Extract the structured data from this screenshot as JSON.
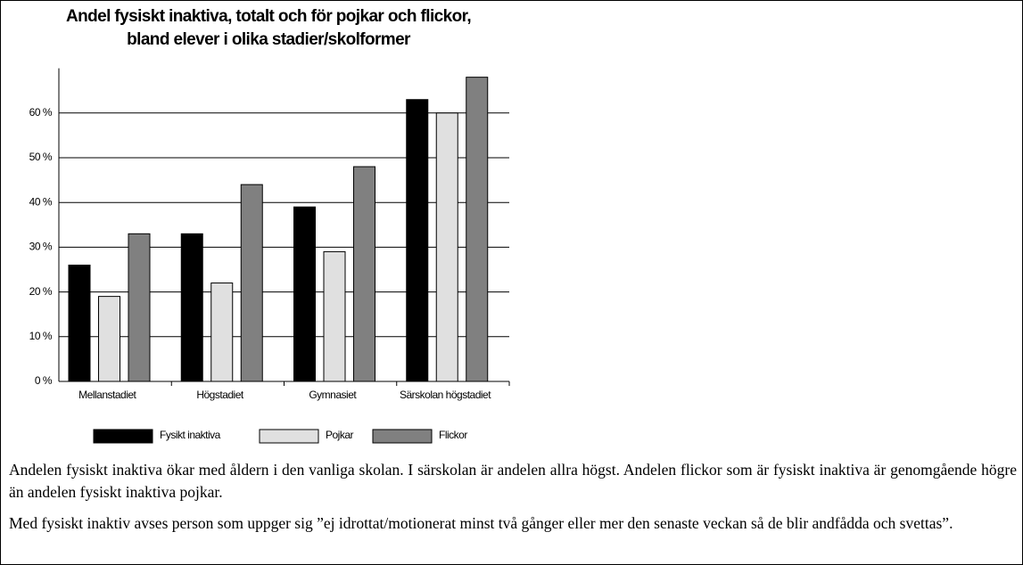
{
  "chart_data": {
    "type": "bar",
    "title": [
      "Andel fysiskt inaktiva, totalt och för pojkar och flickor,",
      "bland elever i olika stadier/skolformer"
    ],
    "categories": [
      "Mellanstadiet",
      "Högstadiet",
      "Gymnasiet",
      "Särskolan högstadiet"
    ],
    "series": [
      {
        "name": "Fysikt inaktiva",
        "color": "#000000",
        "values": [
          26,
          33,
          39,
          63
        ]
      },
      {
        "name": "Pojkar",
        "color": "#e0e0e0",
        "values": [
          19,
          22,
          29,
          60
        ]
      },
      {
        "name": "Flickor",
        "color": "#808080",
        "values": [
          33,
          44,
          48,
          68
        ]
      }
    ],
    "ylim": [
      0,
      70
    ],
    "yticks": [
      {
        "value": 0,
        "label": "0 %"
      },
      {
        "value": 10,
        "label": "10 %"
      },
      {
        "value": 20,
        "label": "20 %"
      },
      {
        "value": 30,
        "label": "30 %"
      },
      {
        "value": 40,
        "label": "40 %"
      },
      {
        "value": 50,
        "label": "50 %"
      },
      {
        "value": 60,
        "label": "60 %"
      }
    ],
    "grid": true
  },
  "text": {
    "paragraphs": [
      "Andelen fysiskt inaktiva ökar med åldern i den vanliga skolan. I särskolan är andelen allra högst.  Andelen flickor som är fysiskt inaktiva är genomgående högre än andelen fysiskt inaktiva pojkar.",
      "Med fysiskt inaktiv avses person som uppger sig ”ej idrottat/motionerat minst två gånger eller mer den senaste veckan så de blir andfådda och svettas”."
    ]
  }
}
